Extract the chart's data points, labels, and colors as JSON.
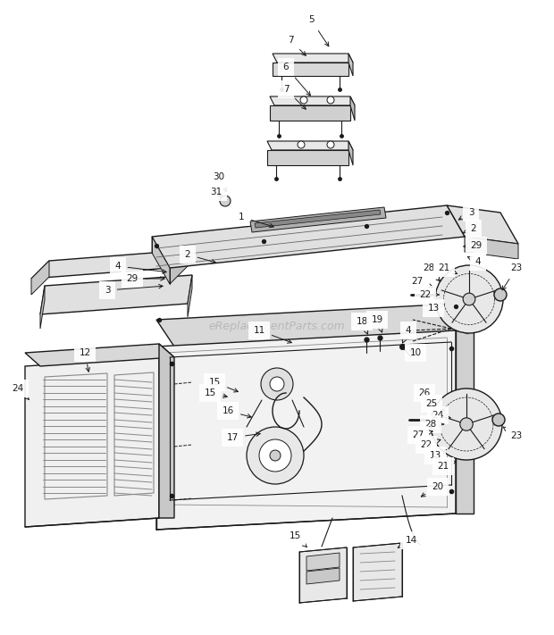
{
  "title": "",
  "watermark": "eReplacementParts.com",
  "background_color": "#ffffff",
  "line_color": "#1a1a1a",
  "label_color": "#1a1a1a",
  "figsize": [
    6.2,
    7.11
  ],
  "dpi": 100
}
